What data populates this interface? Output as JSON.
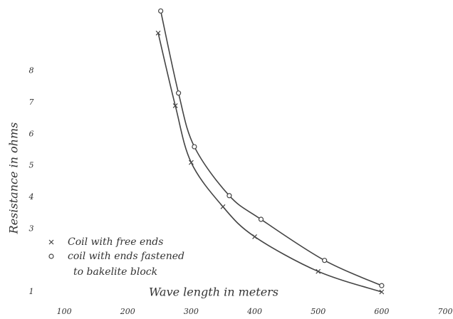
{
  "chart_data": {
    "type": "line",
    "x_label": "Wave length in meters",
    "y_label": "Resistance in ohms",
    "series": [
      {
        "name": "Coil with free ends",
        "marker": "x",
        "color": "#444444",
        "x": [
          248,
          275,
          300,
          350,
          400,
          500,
          600
        ],
        "values": [
          9.2,
          6.9,
          5.1,
          3.7,
          2.75,
          1.65,
          1.0
        ]
      },
      {
        "name": "coil with ends fastened to bakelite block",
        "marker": "o",
        "color": "#444444",
        "x": [
          252,
          280,
          305,
          360,
          410,
          510,
          600
        ],
        "values": [
          9.9,
          7.3,
          5.6,
          4.05,
          3.3,
          2.0,
          1.2
        ]
      }
    ],
    "xlim": [
      0,
      700
    ],
    "xticks": [
      100,
      200,
      300,
      400,
      500,
      600,
      700
    ],
    "ylim": [
      1,
      10
    ],
    "yticks": [
      1,
      3,
      4,
      5,
      6,
      7,
      8
    ]
  }
}
